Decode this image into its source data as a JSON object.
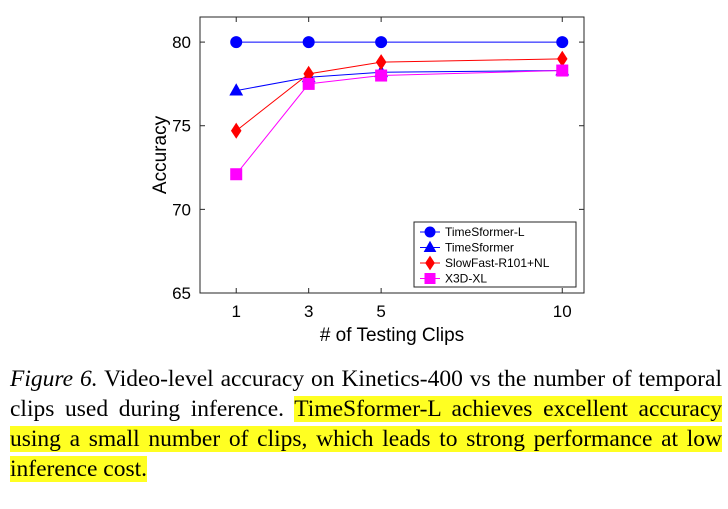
{
  "chart_data": {
    "type": "line",
    "xlabel": "# of Testing Clips",
    "ylabel": "Accuracy",
    "x": [
      1,
      3,
      5,
      10
    ],
    "x_ticks": [
      "1",
      "3",
      "5",
      "10"
    ],
    "y_ticks": [
      "65",
      "70",
      "75",
      "80"
    ],
    "xlim": [
      0,
      10.6
    ],
    "ylim": [
      65,
      81.5
    ],
    "grid": false,
    "legend_position": "bottom-right",
    "series": [
      {
        "name": "TimeSformer-L",
        "values": [
          80.0,
          80.0,
          80.0,
          80.0
        ],
        "color": "#0000ff",
        "marker": "circle"
      },
      {
        "name": "TimeSformer",
        "values": [
          77.1,
          77.9,
          78.2,
          78.3
        ],
        "color": "#0000ff",
        "marker": "triangle"
      },
      {
        "name": "SlowFast-R101+NL",
        "values": [
          74.7,
          78.1,
          78.8,
          79.0
        ],
        "color": "#ff0000",
        "marker": "diamond"
      },
      {
        "name": "X3D-XL",
        "values": [
          72.1,
          77.5,
          78.0,
          78.3
        ],
        "color": "#ff00ff",
        "marker": "square"
      }
    ]
  },
  "caption": {
    "figure_label": "Figure 6.",
    "text": " Video-level accuracy on Kinetics-400 vs the number of temporal clips used during inference. ",
    "highlighted_text": "TimeSformer-L achieves excellent accuracy using a small number of clips, which leads to strong performance at low inference cost.",
    "highlight_color": "#ffff22"
  }
}
